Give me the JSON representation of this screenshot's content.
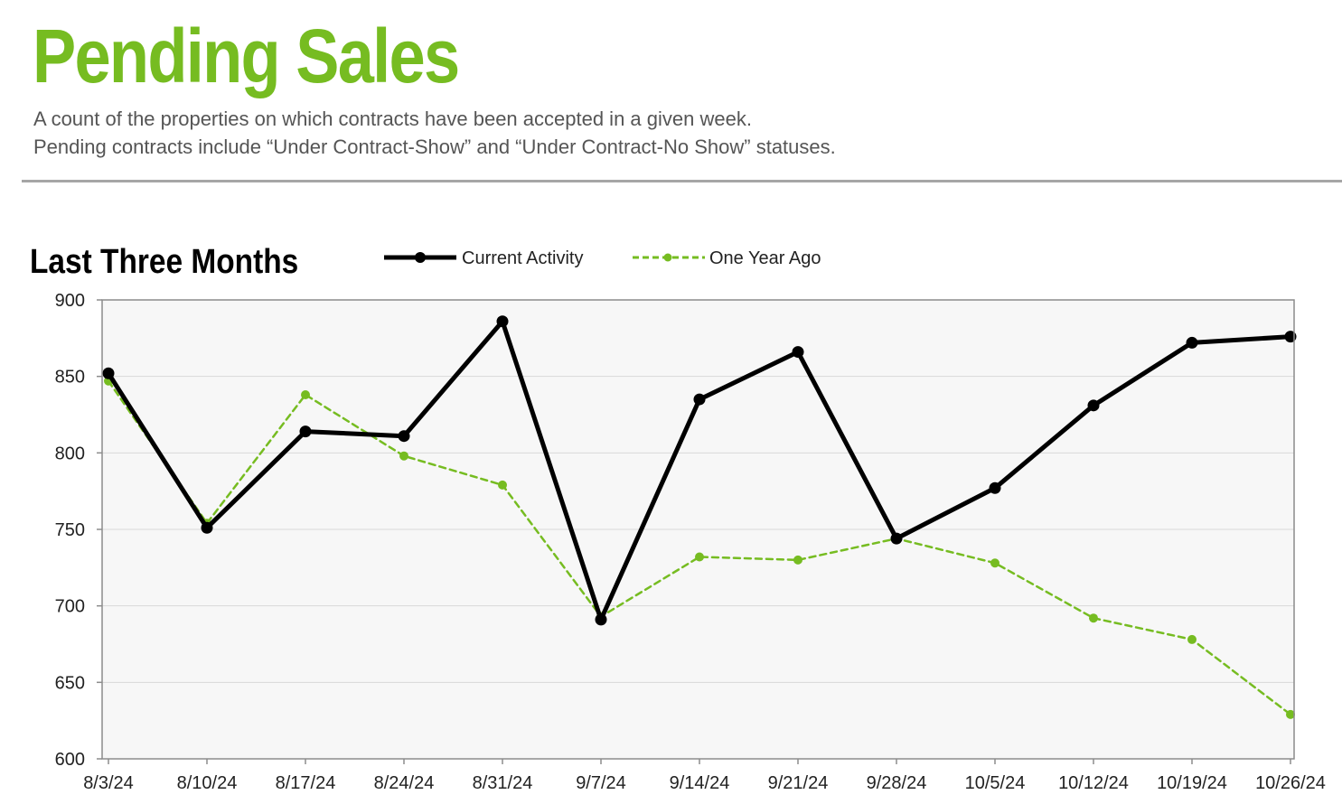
{
  "page": {
    "title": "Pending Sales",
    "description_line1": "A count of the properties on which contracts have been accepted in a given week.",
    "description_line2": "Pending contracts include “Under Contract-Show” and “Under Contract-No Show” statuses.",
    "section_heading": "Last Three Months"
  },
  "colors": {
    "title_green": "#76bc21",
    "current_series": "#000000",
    "year_ago_series": "#76bc21",
    "plot_background": "#f7f7f7",
    "gridline": "#d9d9d9",
    "divider": "#a6a6a6"
  },
  "chart_data": {
    "type": "line",
    "title": "",
    "xlabel": "",
    "ylabel": "",
    "categories": [
      "8/3/24",
      "8/10/24",
      "8/17/24",
      "8/24/24",
      "8/31/24",
      "9/7/24",
      "9/14/24",
      "9/21/24",
      "9/28/24",
      "10/5/24",
      "10/12/24",
      "10/19/24",
      "10/26/24"
    ],
    "ylim": [
      600,
      900
    ],
    "yticks": [
      600,
      650,
      700,
      750,
      800,
      850,
      900
    ],
    "grid": true,
    "legend_position": "top",
    "series": [
      {
        "name": "Current Activity",
        "style": "solid",
        "values": [
          852,
          751,
          814,
          811,
          886,
          691,
          835,
          866,
          744,
          777,
          831,
          872,
          876
        ]
      },
      {
        "name": "One Year Ago",
        "style": "dashed",
        "values": [
          847,
          754,
          838,
          798,
          779,
          693,
          732,
          730,
          744,
          728,
          692,
          678,
          629
        ]
      }
    ]
  }
}
